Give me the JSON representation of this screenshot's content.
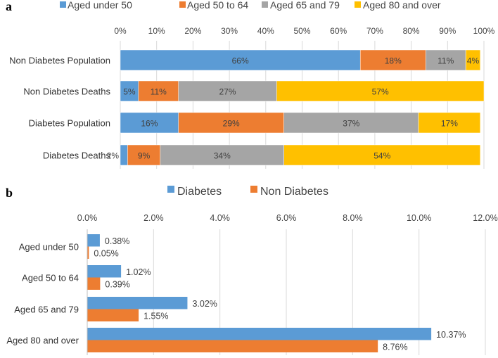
{
  "chart_data": [
    {
      "panel": "a",
      "type": "bar",
      "orientation": "horizontal",
      "stacked": true,
      "percent_stacked": true,
      "title": "",
      "xlabel": "",
      "ylabel": "",
      "categories": [
        "Non Diabetes Population",
        "Non Diabetes Deaths",
        "Diabetes Population",
        "Diabetes Deaths"
      ],
      "series": [
        {
          "name": "Aged under 50",
          "color": "#5B9BD5",
          "values": [
            66,
            5,
            16,
            2
          ],
          "labels": [
            "66%",
            "5%",
            "16%",
            "2%"
          ]
        },
        {
          "name": "Aged 50 to 64",
          "color": "#ED7D31",
          "values": [
            18,
            11,
            29,
            9
          ],
          "labels": [
            "18%",
            "11%",
            "29%",
            "9%"
          ]
        },
        {
          "name": "Aged 65 and 79",
          "color": "#A5A5A5",
          "values": [
            11,
            27,
            37,
            34
          ],
          "labels": [
            "11%",
            "27%",
            "37%",
            "34%"
          ]
        },
        {
          "name": "Aged 80 and over",
          "color": "#FFC000",
          "values": [
            4,
            57,
            17,
            54
          ],
          "labels": [
            "4%",
            "57%",
            "17%",
            "54%"
          ]
        }
      ],
      "xlim": [
        0,
        100
      ],
      "xticks": [
        "0%",
        "10%",
        "20%",
        "30%",
        "40%",
        "50%",
        "60%",
        "70%",
        "80%",
        "90%",
        "100%"
      ],
      "grid": true,
      "legend_position": "top"
    },
    {
      "panel": "b",
      "type": "bar",
      "orientation": "horizontal",
      "stacked": false,
      "title": "",
      "xlabel": "",
      "ylabel": "",
      "categories": [
        "Aged under 50",
        "Aged 50 to 64",
        "Aged 65 and 79",
        "Aged 80 and over"
      ],
      "series": [
        {
          "name": "Diabetes",
          "color": "#5B9BD5",
          "values": [
            0.38,
            1.02,
            3.02,
            10.37
          ],
          "labels": [
            "0.38%",
            "1.02%",
            "3.02%",
            "10.37%"
          ]
        },
        {
          "name": "Non Diabetes",
          "color": "#ED7D31",
          "values": [
            0.05,
            0.39,
            1.55,
            8.76
          ],
          "labels": [
            "0.05%",
            "0.39%",
            "1.55%",
            "8.76%"
          ]
        }
      ],
      "xlim": [
        0,
        12
      ],
      "xticks": [
        "0.0%",
        "2.0%",
        "4.0%",
        "6.0%",
        "8.0%",
        "10.0%",
        "12.0%"
      ],
      "grid": true,
      "legend_position": "top"
    }
  ]
}
